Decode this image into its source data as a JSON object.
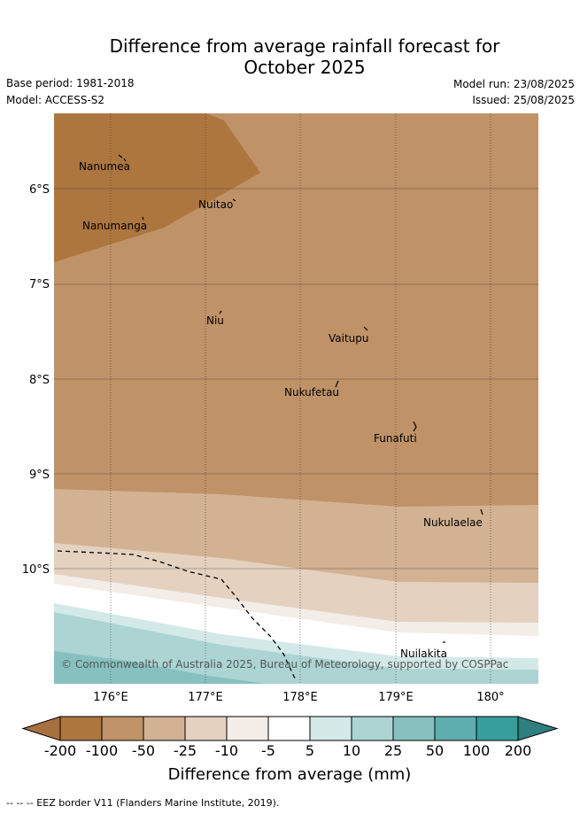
{
  "title_line1": "Difference from average rainfall forecast for",
  "title_line2": "October 2025",
  "base_period": "Base period: 1981-2018",
  "model": "Model: ACCESS-S2",
  "model_run": "Model run: 23/08/2025",
  "issued": "Issued: 25/08/2025",
  "map": {
    "lat_labels": [
      "6°S",
      "7°S",
      "8°S",
      "9°S",
      "10°S"
    ],
    "lon_labels": [
      "176°E",
      "177°E",
      "178°E",
      "179°E",
      "180°"
    ],
    "islands": [
      {
        "name": "Nanumea",
        "lon": 176.12,
        "lat": -5.67
      },
      {
        "name": "Nuitao",
        "lon": 177.32,
        "lat": -6.11
      },
      {
        "name": "Nanumanga",
        "lon": 176.32,
        "lat": -6.29
      },
      {
        "name": "Niu",
        "lon": 177.16,
        "lat": -7.29
      },
      {
        "name": "Vaitupu",
        "lon": 178.68,
        "lat": -7.48
      },
      {
        "name": "Nukufetau",
        "lon": 178.39,
        "lat": -8.03
      },
      {
        "name": "Funafuti",
        "lon": 179.2,
        "lat": -8.52
      },
      {
        "name": "Nukulaelae",
        "lon": 179.83,
        "lat": -9.38
      },
      {
        "name": "Nuilakita",
        "lon": 179.53,
        "lat": -10.74
      }
    ],
    "copyright": "© Commonwealth of Australia 2025, Bureau of Meteorology, supported by COSPPac"
  },
  "colorbar": {
    "ticks": [
      "-200",
      "-100",
      "-50",
      "-25",
      "-10",
      "-5",
      "5",
      "10",
      "25",
      "50",
      "100",
      "200"
    ],
    "colors": [
      "#a8703e",
      "#ad763f",
      "#c09268",
      "#d2b292",
      "#e4d1c0",
      "#f2ede7",
      "#ffffff",
      "#d3e9e8",
      "#acd4d3",
      "#86c1c0",
      "#5eaeae",
      "#379d9d",
      "#2f7f80"
    ],
    "label": "Difference from average (mm)"
  },
  "footer": "--  --  -- EEZ border V11 (Flanders Marine Institute, 2019)."
}
